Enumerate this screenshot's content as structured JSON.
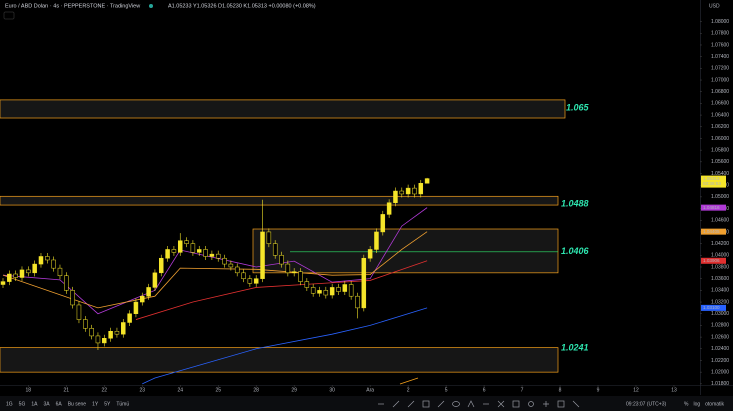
{
  "chart_data": {
    "type": "candlestick",
    "title": "Euro / ABD Doları · 4s · PEPPERSTONE · TradingView",
    "ohlc_text": "A1.05233 Y1.05326 D1.05230 K1.05313 +0.00080 (+0.08%)",
    "currency": "USD",
    "up_color": "#f5e52a",
    "down_color": "#000000",
    "outline_color": "#f5e52a",
    "open": [
      1.035,
      1.0355,
      1.0368,
      1.0362,
      1.0375,
      1.037,
      1.0385,
      1.0398,
      1.0392,
      1.0378,
      1.0365,
      1.034,
      1.0315,
      1.029,
      1.0275,
      1.0262,
      1.025,
      1.0258,
      1.027,
      1.0265,
      1.0285,
      1.03,
      1.032,
      1.033,
      1.0345,
      1.037,
      1.0395,
      1.041,
      1.0405,
      1.0425,
      1.042,
      1.0405,
      1.041,
      1.0398,
      1.0402,
      1.0395,
      1.0385,
      1.038,
      1.037,
      1.036,
      1.0352,
      1.036,
      1.044,
      1.042,
      1.04,
      1.0385,
      1.037,
      1.0372,
      1.0355,
      1.0345,
      1.0335,
      1.034,
      1.0332,
      1.0345,
      1.0338,
      1.035,
      1.033,
      1.031,
      1.0395,
      1.041,
      1.044,
      1.047,
      1.049,
      1.051,
      1.0505,
      1.0515,
      1.0505,
      1.05233
    ],
    "high": [
      1.0361,
      1.0374,
      1.0374,
      1.0381,
      1.0381,
      1.0391,
      1.0404,
      1.0404,
      1.0398,
      1.0384,
      1.0371,
      1.0346,
      1.0321,
      1.0296,
      1.0281,
      1.0268,
      1.0264,
      1.0276,
      1.0276,
      1.0291,
      1.0306,
      1.0326,
      1.0336,
      1.0351,
      1.0376,
      1.0401,
      1.0416,
      1.0416,
      1.0438,
      1.0431,
      1.0426,
      1.0416,
      1.0416,
      1.0408,
      1.0408,
      1.0401,
      1.0391,
      1.0386,
      1.0376,
      1.0366,
      1.0366,
      1.0495,
      1.0446,
      1.0426,
      1.0406,
      1.0391,
      1.0378,
      1.0378,
      1.0361,
      1.0351,
      1.0346,
      1.0346,
      1.0351,
      1.0351,
      1.0356,
      1.0356,
      1.0336,
      1.0401,
      1.0416,
      1.0446,
      1.0476,
      1.0496,
      1.0516,
      1.0516,
      1.0521,
      1.0521,
      1.0529,
      1.05326
    ],
    "low": [
      1.0344,
      1.0349,
      1.0356,
      1.0356,
      1.0364,
      1.0364,
      1.0379,
      1.0386,
      1.0372,
      1.0359,
      1.0334,
      1.0309,
      1.0284,
      1.0269,
      1.0256,
      1.0238,
      1.0244,
      1.0252,
      1.0259,
      1.0259,
      1.0279,
      1.0294,
      1.0314,
      1.0324,
      1.0339,
      1.0364,
      1.0389,
      1.0399,
      1.0399,
      1.0414,
      1.0399,
      1.0399,
      1.0392,
      1.0392,
      1.0389,
      1.0379,
      1.0374,
      1.0364,
      1.0354,
      1.0346,
      1.0346,
      1.0354,
      1.0414,
      1.0394,
      1.0379,
      1.0364,
      1.0364,
      1.0349,
      1.0339,
      1.0329,
      1.0329,
      1.0326,
      1.0326,
      1.0332,
      1.0332,
      1.0324,
      1.0292,
      1.0304,
      1.0389,
      1.0404,
      1.0434,
      1.0464,
      1.0484,
      1.0499,
      1.0499,
      1.0499,
      1.0499,
      1.0523
    ],
    "close": [
      1.0355,
      1.0368,
      1.0362,
      1.0375,
      1.037,
      1.0385,
      1.0398,
      1.0392,
      1.0378,
      1.0365,
      1.034,
      1.0315,
      1.029,
      1.0275,
      1.0262,
      1.025,
      1.0258,
      1.027,
      1.0265,
      1.0285,
      1.03,
      1.032,
      1.033,
      1.0345,
      1.037,
      1.0395,
      1.041,
      1.0405,
      1.0425,
      1.042,
      1.0405,
      1.041,
      1.0398,
      1.0402,
      1.0395,
      1.0385,
      1.038,
      1.037,
      1.036,
      1.0352,
      1.036,
      1.044,
      1.042,
      1.04,
      1.0385,
      1.037,
      1.0372,
      1.0355,
      1.0345,
      1.0335,
      1.034,
      1.0332,
      1.0345,
      1.0338,
      1.035,
      1.033,
      1.031,
      1.0395,
      1.041,
      1.044,
      1.047,
      1.049,
      1.051,
      1.0505,
      1.0515,
      1.0505,
      1.05233,
      1.05313
    ],
    "series": [
      {
        "color": "#b03ad6",
        "x": [
          0,
          9,
          15,
          24,
          28,
          40,
          46,
          52,
          58,
          63,
          67
        ],
        "values": [
          1.0366,
          1.0358,
          1.03,
          1.034,
          1.0409,
          1.038,
          1.039,
          1.0354,
          1.036,
          1.045,
          1.04816
        ]
      },
      {
        "color": "#f0a030",
        "x": [
          0,
          15,
          24,
          28,
          40,
          52,
          58,
          63,
          67
        ],
        "values": [
          1.0366,
          1.031,
          1.033,
          1.0378,
          1.0376,
          1.0366,
          1.0367,
          1.041,
          1.04405
        ]
      },
      {
        "color": "#e03030",
        "x": [
          21,
          30,
          40,
          52,
          58,
          67
        ],
        "values": [
          1.029,
          1.032,
          1.0345,
          1.0353,
          1.0357,
          1.03906
        ]
      },
      {
        "color": "#2962ff",
        "x": [
          22,
          24,
          40,
          52,
          58,
          67
        ],
        "values": [
          1.018,
          1.019,
          1.024,
          1.0265,
          1.028,
          1.031
        ]
      }
    ],
    "zones": [
      {
        "top": 1.0666,
        "bottom": 1.0635,
        "label": 1.065
      },
      {
        "top": 1.0501,
        "bottom": 1.0486,
        "label": 1.0488
      },
      {
        "top": 1.0445,
        "bottom": 1.037,
        "label": 1.0406
      },
      {
        "top": 1.0242,
        "bottom": 1.02,
        "label": 1.0241
      }
    ],
    "zone_color": "#f7a21b",
    "level_color": "#2ee66b",
    "price_labels": [
      {
        "value": 1.05313,
        "color": "#f5e52a"
      },
      {
        "value": 1.04816,
        "color": "#b03ad6"
      },
      {
        "value": 1.04405,
        "color": "#f0a030"
      },
      {
        "value": 1.03906,
        "color": "#e03030"
      },
      {
        "value": 1.031,
        "label": "1.03100",
        "color": "#2962ff"
      }
    ],
    "countdown": "03:36:53",
    "ylim": [
      1.0178,
      1.0837
    ],
    "yticks": [
      {
        "value": 1.018,
        "label": "1.01800"
      },
      {
        "value": 1.02,
        "label": "1.02000"
      },
      {
        "value": 1.022,
        "label": "1.02200"
      },
      {
        "value": 1.024,
        "label": "1.02400"
      },
      {
        "value": 1.026,
        "label": "1.02600"
      },
      {
        "value": 1.028,
        "label": "1.02800"
      },
      {
        "value": 1.03,
        "label": "1.03000"
      },
      {
        "value": 1.032,
        "label": "1.03200"
      },
      {
        "value": 1.034,
        "label": "1.03400"
      },
      {
        "value": 1.036,
        "label": "1.03600"
      },
      {
        "value": 1.038,
        "label": "1.03800"
      },
      {
        "value": 1.04,
        "label": "1.04000"
      },
      {
        "value": 1.042,
        "label": "1.04200"
      },
      {
        "value": 1.044,
        "label": "1.04400"
      },
      {
        "value": 1.046,
        "label": "1.04600"
      },
      {
        "value": 1.048,
        "label": "1.04800"
      },
      {
        "value": 1.05,
        "label": "1.05000"
      },
      {
        "value": 1.052,
        "label": "1.05200"
      },
      {
        "value": 1.054,
        "label": "1.05400"
      },
      {
        "value": 1.056,
        "label": "1.05600"
      },
      {
        "value": 1.058,
        "label": "1.05800"
      },
      {
        "value": 1.06,
        "label": "1.06000"
      },
      {
        "value": 1.062,
        "label": "1.06200"
      },
      {
        "value": 1.064,
        "label": "1.06400"
      },
      {
        "value": 1.066,
        "label": "1.06600"
      },
      {
        "value": 1.068,
        "label": "1.06800"
      },
      {
        "value": 1.07,
        "label": "1.07000"
      },
      {
        "value": 1.072,
        "label": "1.07200"
      },
      {
        "value": 1.074,
        "label": "1.07400"
      },
      {
        "value": 1.076,
        "label": "1.07600"
      },
      {
        "value": 1.078,
        "label": "1.07800"
      },
      {
        "value": 1.08,
        "label": "1.08000"
      }
    ],
    "xticks": [
      {
        "value": 4,
        "label": "18"
      },
      {
        "value": 10,
        "label": "21"
      },
      {
        "value": 16,
        "label": "22"
      },
      {
        "value": 22,
        "label": "23"
      },
      {
        "value": 28,
        "label": "24"
      },
      {
        "value": 34,
        "label": "25"
      },
      {
        "value": 40,
        "label": "28"
      },
      {
        "value": 46,
        "label": "29"
      },
      {
        "value": 52,
        "label": "30"
      },
      {
        "value": 58,
        "label": "Ara"
      },
      {
        "value": 64,
        "label": "2"
      },
      {
        "value": 70,
        "label": "5"
      },
      {
        "value": 76,
        "label": "6"
      },
      {
        "value": 82,
        "label": "7"
      },
      {
        "value": 88,
        "label": "8"
      },
      {
        "value": 94,
        "label": "9"
      },
      {
        "value": 100,
        "label": "12"
      },
      {
        "value": 106,
        "label": "13"
      }
    ]
  },
  "toolbar": {
    "ranges": [
      "1G",
      "5G",
      "1A",
      "3A",
      "6A",
      "Bu sene",
      "1Y",
      "5Y",
      "Tümü"
    ],
    "clock": "09:23:07 (UTC+3)",
    "options": [
      "%",
      "log",
      "otomatik"
    ]
  }
}
